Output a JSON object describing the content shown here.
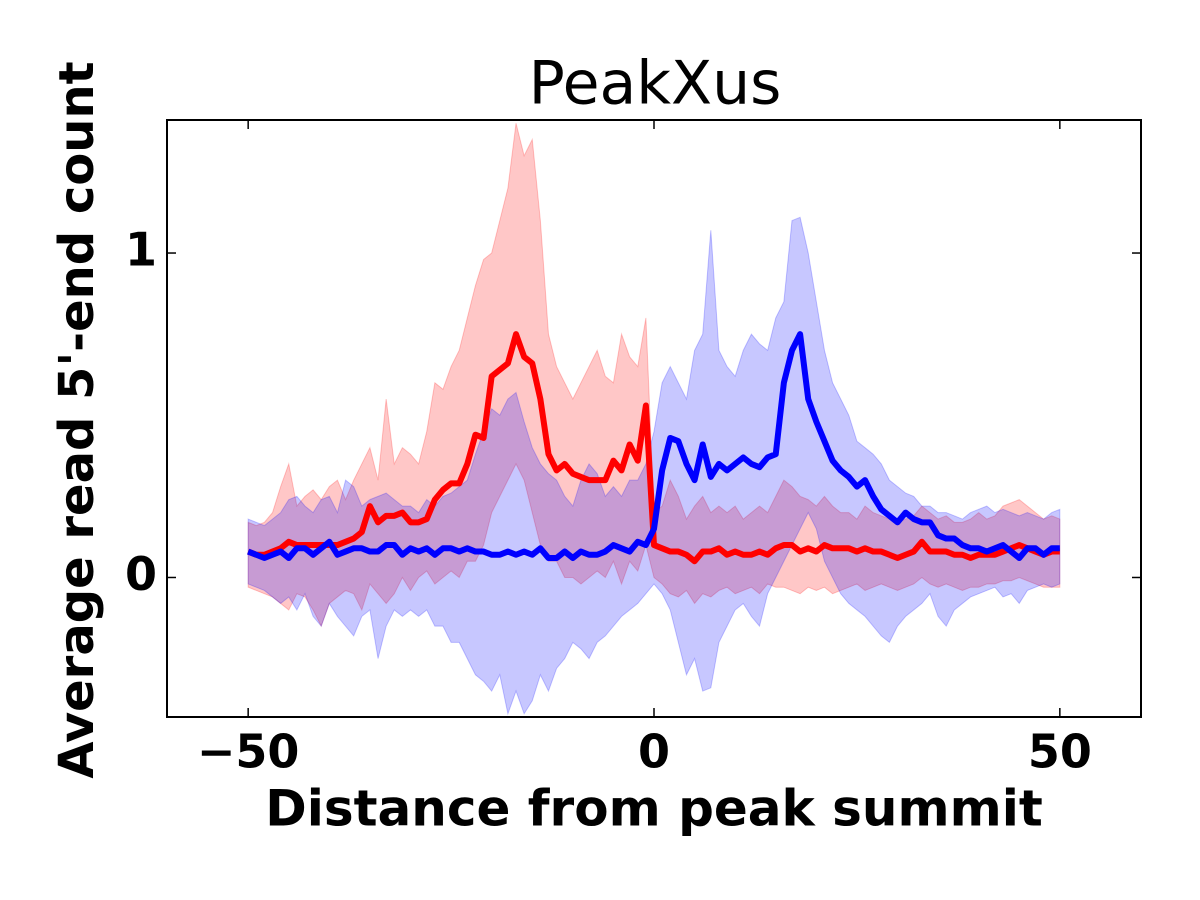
{
  "chart_data": {
    "type": "line",
    "title": "PeakXus",
    "x_label": "Distance from peak summit",
    "y_label": "Average read 5'-end count",
    "xlim": [
      -60,
      60
    ],
    "ylim": [
      -0.43,
      1.41
    ],
    "xticks": [
      {
        "value": -50,
        "label": "−50"
      },
      0,
      50
    ],
    "yticks": [
      0,
      1
    ],
    "band_opacity": 0.22,
    "x": [
      -50,
      -49,
      -48,
      -47,
      -46,
      -45,
      -44,
      -43,
      -42,
      -41,
      -40,
      -39,
      -38,
      -37,
      -36,
      -35,
      -34,
      -33,
      -32,
      -31,
      -30,
      -29,
      -28,
      -27,
      -26,
      -25,
      -24,
      -23,
      -22,
      -21,
      -20,
      -19,
      -18,
      -17,
      -16,
      -15,
      -14,
      -13,
      -12,
      -11,
      -10,
      -9,
      -8,
      -7,
      -6,
      -5,
      -4,
      -3,
      -2,
      -1,
      0,
      1,
      2,
      3,
      4,
      5,
      6,
      7,
      8,
      9,
      10,
      11,
      12,
      13,
      14,
      15,
      16,
      17,
      18,
      19,
      20,
      21,
      22,
      23,
      24,
      25,
      26,
      27,
      28,
      29,
      30,
      31,
      32,
      33,
      34,
      35,
      36,
      37,
      38,
      39,
      40,
      41,
      42,
      43,
      44,
      45,
      46,
      47,
      48,
      49,
      50
    ],
    "series": [
      {
        "color": "#ff0000",
        "values": [
          0.08,
          0.07,
          0.07,
          0.08,
          0.09,
          0.11,
          0.1,
          0.1,
          0.1,
          0.1,
          0.1,
          0.1,
          0.11,
          0.12,
          0.14,
          0.22,
          0.17,
          0.19,
          0.19,
          0.2,
          0.17,
          0.17,
          0.18,
          0.24,
          0.27,
          0.29,
          0.29,
          0.35,
          0.44,
          0.43,
          0.62,
          0.64,
          0.66,
          0.75,
          0.68,
          0.66,
          0.55,
          0.38,
          0.33,
          0.35,
          0.32,
          0.31,
          0.3,
          0.3,
          0.3,
          0.36,
          0.33,
          0.41,
          0.36,
          0.53,
          0.1,
          0.09,
          0.08,
          0.08,
          0.07,
          0.05,
          0.08,
          0.08,
          0.09,
          0.07,
          0.08,
          0.07,
          0.07,
          0.08,
          0.07,
          0.09,
          0.1,
          0.1,
          0.08,
          0.09,
          0.08,
          0.1,
          0.09,
          0.09,
          0.09,
          0.08,
          0.09,
          0.08,
          0.08,
          0.07,
          0.06,
          0.07,
          0.08,
          0.11,
          0.08,
          0.08,
          0.08,
          0.07,
          0.07,
          0.06,
          0.07,
          0.07,
          0.07,
          0.08,
          0.09,
          0.1,
          0.09,
          0.08,
          0.07,
          0.08,
          0.08
        ],
        "upper": [
          0.17,
          0.16,
          0.17,
          0.2,
          0.28,
          0.35,
          0.22,
          0.25,
          0.27,
          0.24,
          0.28,
          0.3,
          0.24,
          0.3,
          0.35,
          0.4,
          0.3,
          0.55,
          0.35,
          0.4,
          0.38,
          0.35,
          0.45,
          0.6,
          0.58,
          0.65,
          0.7,
          0.8,
          0.9,
          0.98,
          1.0,
          1.1,
          1.2,
          1.4,
          1.3,
          1.35,
          1.1,
          0.75,
          0.65,
          0.6,
          0.55,
          0.6,
          0.65,
          0.7,
          0.62,
          0.6,
          0.75,
          0.68,
          0.65,
          0.8,
          0.2,
          0.22,
          0.3,
          0.25,
          0.18,
          0.22,
          0.25,
          0.2,
          0.22,
          0.2,
          0.22,
          0.18,
          0.2,
          0.22,
          0.2,
          0.25,
          0.3,
          0.28,
          0.25,
          0.24,
          0.22,
          0.25,
          0.22,
          0.2,
          0.2,
          0.18,
          0.22,
          0.2,
          0.19,
          0.18,
          0.17,
          0.18,
          0.19,
          0.22,
          0.2,
          0.18,
          0.19,
          0.17,
          0.17,
          0.18,
          0.2,
          0.18,
          0.19,
          0.22,
          0.23,
          0.24,
          0.22,
          0.2,
          0.18,
          0.19,
          0.18
        ],
        "lower": [
          -0.03,
          -0.04,
          -0.05,
          -0.06,
          -0.08,
          -0.1,
          -0.05,
          -0.06,
          -0.1,
          -0.15,
          -0.08,
          -0.06,
          -0.04,
          -0.05,
          -0.1,
          -0.02,
          -0.05,
          -0.08,
          -0.05,
          0.0,
          -0.04,
          0.0,
          0.02,
          -0.02,
          0.0,
          0.02,
          0.0,
          0.05,
          0.05,
          0.1,
          0.2,
          0.25,
          0.3,
          0.35,
          0.3,
          0.2,
          0.1,
          0.05,
          0.05,
          0.0,
          0.0,
          -0.02,
          0.0,
          0.02,
          0.0,
          0.05,
          -0.02,
          0.05,
          0.02,
          0.1,
          0.0,
          -0.02,
          -0.05,
          -0.06,
          -0.04,
          -0.08,
          -0.05,
          -0.06,
          -0.04,
          -0.03,
          -0.05,
          -0.04,
          -0.03,
          -0.05,
          -0.02,
          -0.03,
          -0.03,
          -0.04,
          -0.05,
          -0.03,
          -0.04,
          -0.03,
          -0.05,
          -0.04,
          -0.03,
          -0.02,
          -0.04,
          -0.03,
          -0.02,
          -0.03,
          -0.04,
          -0.03,
          -0.02,
          0.0,
          -0.02,
          -0.03,
          -0.02,
          -0.03,
          -0.04,
          -0.03,
          -0.03,
          -0.02,
          -0.02,
          -0.01,
          -0.01,
          0.0,
          -0.01,
          -0.02,
          -0.03,
          -0.03,
          -0.03
        ]
      },
      {
        "color": "#0000ff",
        "values": [
          0.08,
          0.07,
          0.06,
          0.07,
          0.08,
          0.06,
          0.09,
          0.09,
          0.07,
          0.09,
          0.11,
          0.07,
          0.08,
          0.09,
          0.09,
          0.08,
          0.08,
          0.1,
          0.1,
          0.07,
          0.09,
          0.08,
          0.09,
          0.07,
          0.09,
          0.09,
          0.08,
          0.09,
          0.08,
          0.08,
          0.07,
          0.07,
          0.08,
          0.07,
          0.08,
          0.07,
          0.09,
          0.06,
          0.06,
          0.08,
          0.06,
          0.08,
          0.07,
          0.07,
          0.08,
          0.1,
          0.09,
          0.08,
          0.11,
          0.1,
          0.15,
          0.33,
          0.43,
          0.42,
          0.35,
          0.3,
          0.41,
          0.31,
          0.35,
          0.33,
          0.35,
          0.37,
          0.35,
          0.34,
          0.37,
          0.38,
          0.6,
          0.7,
          0.75,
          0.55,
          0.48,
          0.42,
          0.36,
          0.33,
          0.31,
          0.28,
          0.3,
          0.25,
          0.21,
          0.19,
          0.17,
          0.2,
          0.18,
          0.17,
          0.17,
          0.13,
          0.12,
          0.12,
          0.1,
          0.09,
          0.09,
          0.08,
          0.09,
          0.1,
          0.08,
          0.06,
          0.09,
          0.09,
          0.07,
          0.09,
          0.09
        ],
        "upper": [
          0.18,
          0.17,
          0.16,
          0.18,
          0.2,
          0.24,
          0.25,
          0.22,
          0.2,
          0.24,
          0.25,
          0.2,
          0.3,
          0.28,
          0.22,
          0.24,
          0.25,
          0.26,
          0.24,
          0.22,
          0.22,
          0.2,
          0.24,
          0.22,
          0.25,
          0.26,
          0.28,
          0.3,
          0.38,
          0.45,
          0.52,
          0.5,
          0.55,
          0.57,
          0.48,
          0.4,
          0.35,
          0.32,
          0.3,
          0.25,
          0.22,
          0.3,
          0.35,
          0.32,
          0.25,
          0.28,
          0.25,
          0.3,
          0.3,
          0.35,
          0.45,
          0.6,
          0.65,
          0.6,
          0.55,
          0.7,
          0.75,
          1.07,
          0.7,
          0.65,
          0.62,
          0.7,
          0.75,
          0.72,
          0.7,
          0.8,
          0.85,
          1.1,
          1.11,
          1.0,
          0.85,
          0.7,
          0.6,
          0.55,
          0.5,
          0.42,
          0.4,
          0.38,
          0.35,
          0.3,
          0.28,
          0.26,
          0.25,
          0.22,
          0.22,
          0.2,
          0.2,
          0.19,
          0.18,
          0.2,
          0.21,
          0.22,
          0.2,
          0.21,
          0.2,
          0.19,
          0.2,
          0.19,
          0.18,
          0.2,
          0.21
        ],
        "lower": [
          -0.02,
          -0.03,
          -0.04,
          -0.06,
          -0.08,
          -0.06,
          -0.1,
          -0.05,
          -0.12,
          -0.15,
          -0.08,
          -0.12,
          -0.15,
          -0.18,
          -0.12,
          -0.1,
          -0.25,
          -0.15,
          -0.1,
          -0.12,
          -0.1,
          -0.12,
          -0.1,
          -0.15,
          -0.15,
          -0.2,
          -0.2,
          -0.25,
          -0.3,
          -0.32,
          -0.35,
          -0.3,
          -0.42,
          -0.35,
          -0.42,
          -0.38,
          -0.3,
          -0.35,
          -0.28,
          -0.25,
          -0.2,
          -0.22,
          -0.25,
          -0.2,
          -0.18,
          -0.15,
          -0.12,
          -0.1,
          -0.08,
          -0.05,
          -0.02,
          -0.05,
          -0.1,
          -0.2,
          -0.3,
          -0.25,
          -0.35,
          -0.34,
          -0.2,
          -0.15,
          -0.1,
          -0.08,
          -0.12,
          -0.15,
          -0.05,
          0.0,
          0.05,
          0.1,
          0.15,
          0.2,
          0.15,
          0.05,
          0.0,
          -0.05,
          -0.08,
          -0.1,
          -0.12,
          -0.15,
          -0.18,
          -0.2,
          -0.15,
          -0.12,
          -0.1,
          -0.08,
          -0.05,
          -0.12,
          -0.15,
          -0.1,
          -0.08,
          -0.06,
          -0.05,
          -0.04,
          -0.03,
          -0.06,
          -0.05,
          -0.08,
          -0.04,
          -0.03,
          -0.02,
          -0.03,
          -0.02
        ]
      }
    ]
  }
}
